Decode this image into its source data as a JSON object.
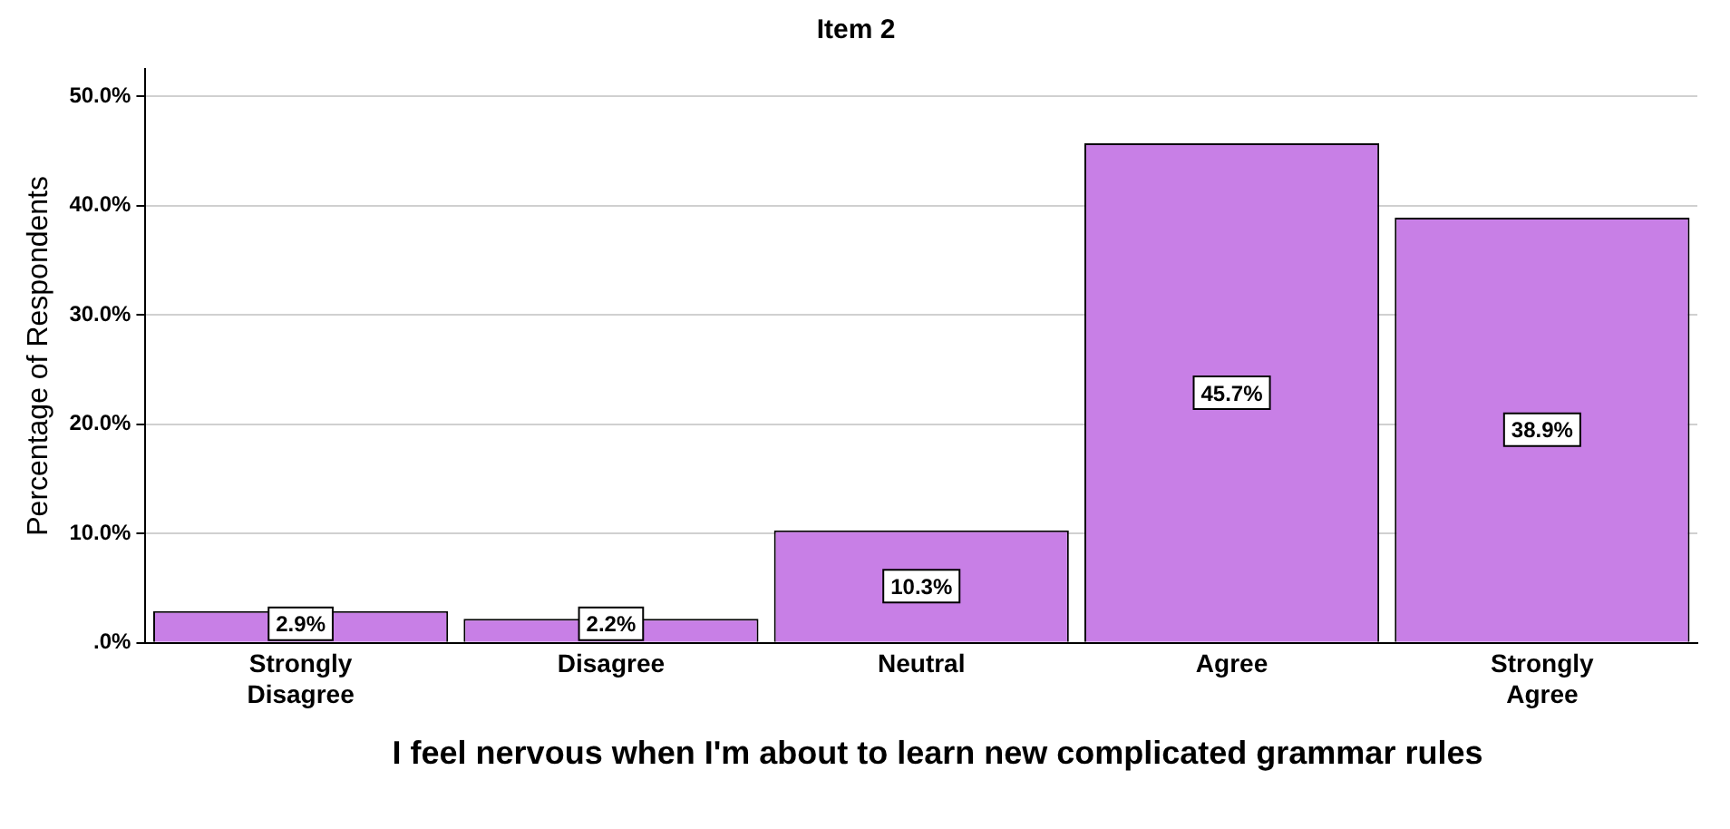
{
  "chart_data": {
    "type": "bar",
    "title": "Item 2",
    "xlabel": "I feel nervous when I'm about to learn new complicated grammar rules",
    "ylabel": "Percentage of Respondents",
    "categories": [
      "Strongly Disagree",
      "Disagree",
      "Neutral",
      "Agree",
      "Strongly Agree"
    ],
    "values": [
      2.9,
      2.2,
      10.3,
      45.7,
      38.9
    ],
    "value_labels": [
      "2.9%",
      "2.2%",
      "10.3%",
      "45.7%",
      "38.9%"
    ],
    "color": "#c87fe6",
    "ylim": [
      0,
      52.5
    ],
    "yticks": [
      {
        "value": 0,
        "label": ".0%"
      },
      {
        "value": 10,
        "label": "10.0%"
      },
      {
        "value": 20,
        "label": "20.0%"
      },
      {
        "value": 30,
        "label": "30.0%"
      },
      {
        "value": 40,
        "label": "40.0%"
      },
      {
        "value": 50,
        "label": "50.0%"
      }
    ],
    "grid": "y",
    "legend": false
  }
}
